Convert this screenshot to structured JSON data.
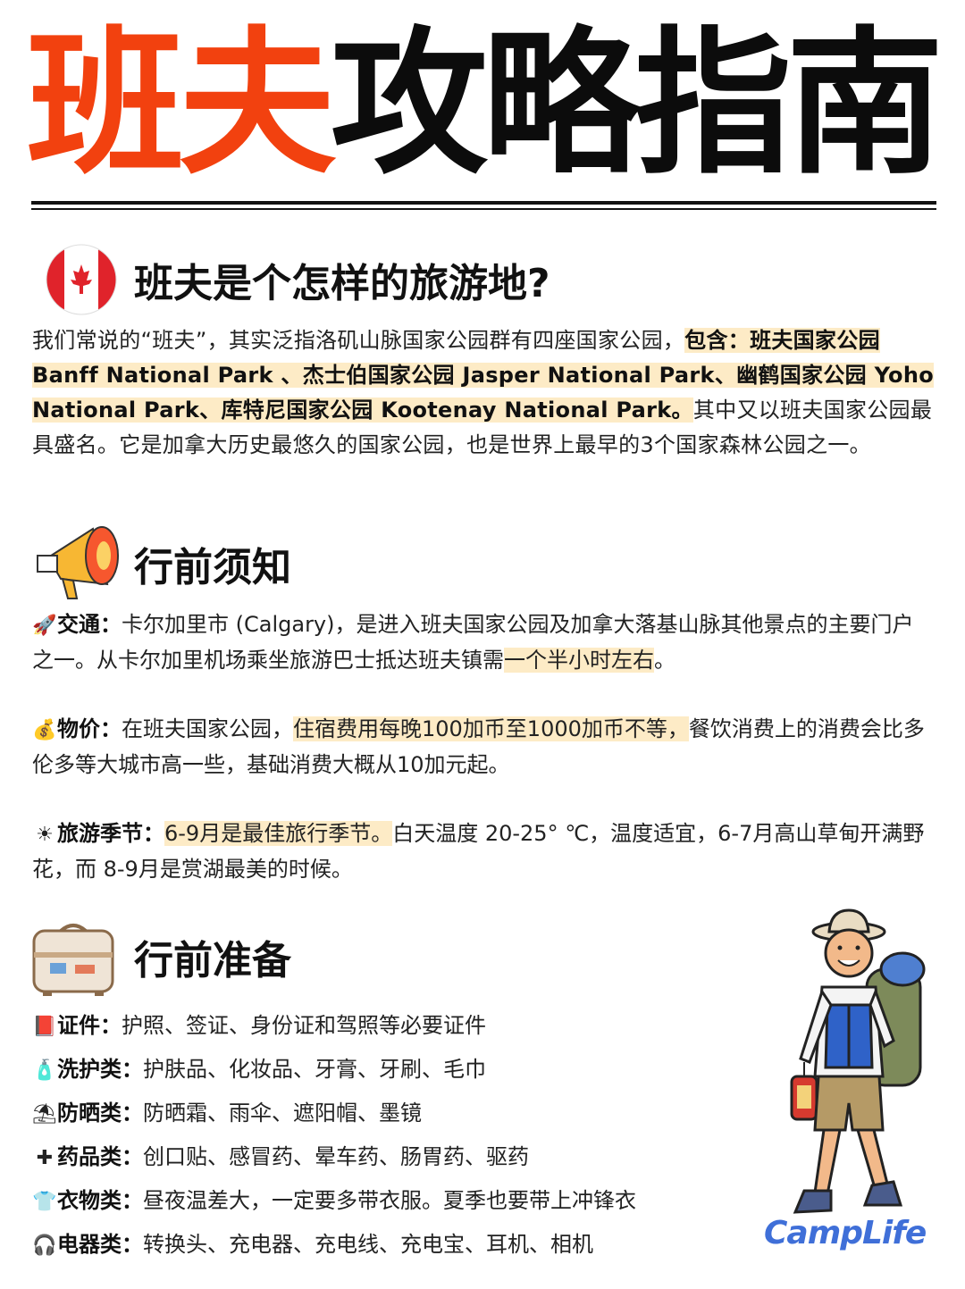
{
  "title": {
    "part1": "班夫",
    "part2": "攻略指南"
  },
  "section1": {
    "heading": "班夫是个怎样的旅游地?",
    "p_a": "我们常说的“班夫”，其实泛指洛矶山脉国家公园群有四座国家公园，",
    "p_hl": "包含：班夫国家公园 Banff National Park 、杰士伯国家公园 Jasper National Park、幽鹤国家公园 Yoho National Park、库特尼国家公园 Kootenay National Park。",
    "p_b": "其中又以班夫国家公园最具盛名。它是加拿大历史最悠久的国家公园，也是世界上最早的3个国家森林公园之一。"
  },
  "section2": {
    "heading": "行前须知",
    "traffic": {
      "label": "交通：",
      "text_a": "卡尔加里市 (Calgary)，是进入班夫国家公园及加拿大落基山脉其他景点的主要门户之一。从卡尔加里机场乘坐旅游巴士抵达班夫镇需",
      "hl": "一个半小时左右",
      "text_b": "。"
    },
    "price": {
      "label": "物价：",
      "text_a": "在班夫国家公园，",
      "hl": "住宿费用每晚100加币至1000加币不等，",
      "text_b": "餐饮消费上的消费会比多伦多等大城市高一些，基础消费大概从10加元起。"
    },
    "season": {
      "label": "旅游季节：",
      "hl": "6-9月是最佳旅行季节。",
      "text_b": "白天温度 20-25° ℃，温度适宜，6-7月高山草甸开满野花，而 8-9月是赏湖最美的时候。"
    }
  },
  "section3": {
    "heading": "行前准备",
    "items": [
      {
        "label": "证件：",
        "text": "护照、签证、身份证和驾照等必要证件",
        "icon": "passport-icon"
      },
      {
        "label": "洗护类：",
        "text": "护肤品、化妆品、牙膏、牙刷、毛巾",
        "icon": "bottle-icon"
      },
      {
        "label": "防晒类：",
        "text": "防晒霜、雨伞、遮阳帽、墨镜",
        "icon": "umbrella-icon"
      },
      {
        "label": "药品类：",
        "text": "创口贴、感冒药、晕车药、肠胃药、驱药",
        "icon": "first-aid-icon"
      },
      {
        "label": "衣物类：",
        "text": "昼夜温差大，一定要多带衣服。夏季也要带上冲锋衣",
        "icon": "shirt-icon"
      },
      {
        "label": "电器类：",
        "text": "转换头、充电器、充电线、充电宝、耳机、相机",
        "icon": "headphones-icon"
      }
    ]
  },
  "brand": "CampLife",
  "colors": {
    "accent": "#f2410f",
    "highlight": "#fdebc6",
    "brand": "#3f6fd8"
  }
}
